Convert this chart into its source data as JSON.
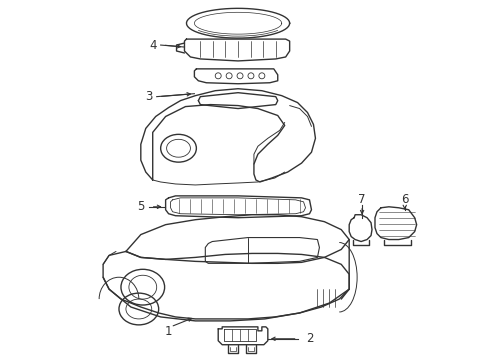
{
  "background_color": "#ffffff",
  "line_color": "#333333",
  "line_width": 1.0,
  "figsize": [
    4.9,
    3.6
  ],
  "dpi": 100
}
